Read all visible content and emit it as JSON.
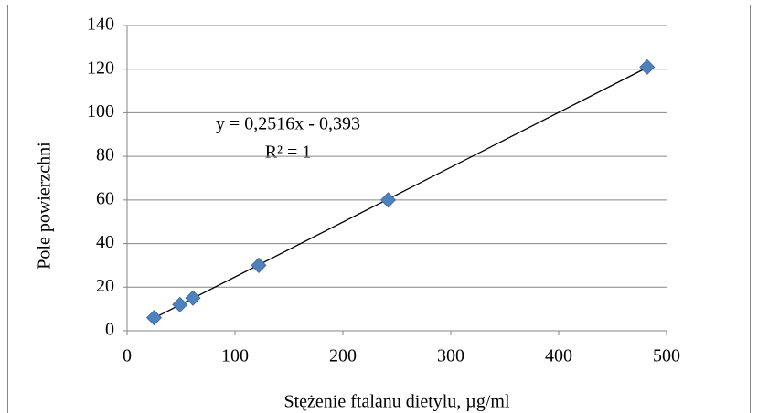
{
  "chart_data": {
    "type": "scatter",
    "x_label": "Stężenie ftalanu dietylu, µg/ml",
    "y_label": "Pole powierzchni",
    "annotations": [
      "y = 0,2516x - 0,393",
      "R² = 1"
    ],
    "x": [
      25,
      49,
      61,
      122,
      242,
      482
    ],
    "series": [
      {
        "color": "#4f81bd",
        "values": [
          6,
          12,
          15,
          30,
          60,
          121
        ]
      }
    ],
    "trendline": true,
    "xlim": [
      0,
      500
    ],
    "xticks": [
      0,
      100,
      200,
      300,
      400,
      500
    ],
    "ylim": [
      0,
      140
    ],
    "yticks": [
      0,
      20,
      40,
      60,
      80,
      100,
      120,
      140
    ],
    "grid": true
  }
}
